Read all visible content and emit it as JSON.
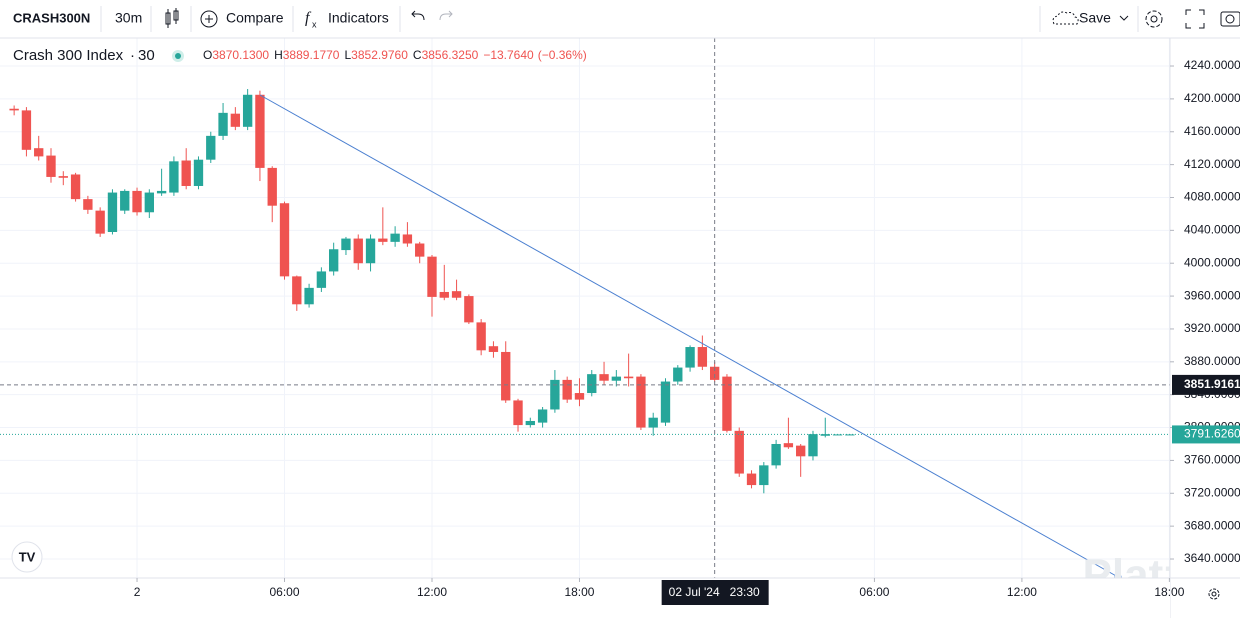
{
  "toolbar": {
    "symbol": "CRASH300N",
    "interval": "30m",
    "compare": "Compare",
    "indicators": "Indicators",
    "save": "Save"
  },
  "legend": {
    "name": "Crash 300 Index",
    "interval": "30",
    "items": [
      {
        "key": "O",
        "value": "3870.1300"
      },
      {
        "key": "H",
        "value": "3889.1770"
      },
      {
        "key": "L",
        "value": "3852.9760"
      },
      {
        "key": "C",
        "value": "3856.3250"
      }
    ],
    "change": "−13.7640",
    "change_pct": "(−0.36%)"
  },
  "chart_data": {
    "type": "candlestick",
    "x": [
      -10,
      -9,
      -8,
      -7,
      -6,
      -5,
      -4,
      -3,
      -2,
      -1,
      0,
      1,
      2,
      3,
      4,
      5,
      6,
      7,
      8,
      9,
      10,
      11,
      12,
      13,
      14,
      15,
      16,
      17,
      18,
      19,
      20,
      21,
      22,
      23,
      24,
      25,
      26,
      27,
      28,
      29,
      30,
      31,
      32,
      33,
      34,
      35,
      36,
      37,
      38,
      39,
      40,
      41,
      42,
      43,
      44,
      45,
      46,
      47,
      48,
      49,
      50,
      51,
      52,
      53,
      54,
      55,
      56,
      57,
      58
    ],
    "open": [
      4188,
      4186,
      4140,
      4131,
      4106,
      4108,
      4078,
      4064,
      4038,
      4064,
      4088,
      4062,
      4085,
      4086,
      4125,
      4094,
      4126,
      4155,
      4182,
      4166,
      4205,
      4116,
      4073,
      3984,
      3950,
      3970,
      3990,
      4016,
      4030,
      4000,
      4030,
      4026,
      4035,
      4024,
      4008,
      3965,
      3966,
      3960,
      3928,
      3899,
      3892,
      3833,
      3803,
      3806,
      3822,
      3858,
      3842,
      3842,
      3865,
      3857,
      3862,
      3862,
      3800,
      3806,
      3856,
      3873,
      3898,
      3874,
      3862,
      3796,
      3744,
      3730,
      3754,
      3781,
      3778,
      3765,
      3790,
      3791.6,
      3791.6
    ],
    "high": [
      4192,
      4190,
      4155,
      4140,
      4112,
      4110,
      4082,
      4068,
      4090,
      4090,
      4092,
      4090,
      4115,
      4130,
      4140,
      4130,
      4160,
      4195,
      4190,
      4212,
      4210,
      4118,
      4075,
      3985,
      3975,
      3995,
      4025,
      4032,
      4035,
      4035,
      4068,
      4045,
      4050,
      4026,
      4010,
      3998,
      3980,
      3962,
      3932,
      3905,
      3905,
      3835,
      3812,
      3825,
      3870,
      3862,
      3860,
      3870,
      3880,
      3870,
      3890,
      3865,
      3818,
      3860,
      3876,
      3900,
      3912,
      3880,
      3865,
      3800,
      3748,
      3758,
      3785,
      3812,
      3780,
      3796,
      3812,
      3792,
      3792
    ],
    "low": [
      4180,
      4130,
      4125,
      4098,
      4095,
      4075,
      4060,
      4032,
      4035,
      4060,
      4058,
      4055,
      4082,
      4082,
      4090,
      4090,
      4122,
      4150,
      4162,
      4162,
      4100,
      4050,
      3980,
      3942,
      3946,
      3965,
      3985,
      4010,
      3992,
      3990,
      4022,
      4020,
      4020,
      4000,
      3935,
      3955,
      3955,
      3926,
      3888,
      3885,
      3830,
      3795,
      3800,
      3800,
      3818,
      3830,
      3826,
      3838,
      3852,
      3850,
      3850,
      3797,
      3790,
      3802,
      3852,
      3868,
      3870,
      3855,
      3794,
      3740,
      3726,
      3720,
      3750,
      3774,
      3740,
      3760,
      3788,
      3791,
      3791
    ],
    "close": [
      4186,
      4138,
      4130,
      4105,
      4104,
      4078,
      4065,
      4036,
      4086,
      4088,
      4062,
      4086,
      4088,
      4124,
      4094,
      4126,
      4155,
      4183,
      4166,
      4205,
      4116,
      4070,
      3984,
      3950,
      3970,
      3990,
      4017,
      4030,
      4000,
      4030,
      4026,
      4036,
      4024,
      4008,
      3959,
      3958,
      3958,
      3928,
      3894,
      3892,
      3833,
      3803,
      3808,
      3822,
      3858,
      3834,
      3834,
      3865,
      3857,
      3862,
      3860,
      3800,
      3812,
      3856,
      3873,
      3898,
      3874,
      3858,
      3796,
      3744,
      3730,
      3754,
      3780,
      3776,
      3765,
      3792,
      3792,
      3791.626,
      3791.626
    ],
    "up_color": "#26a69a",
    "down_color": "#ef5350",
    "xlim": [
      -11.15,
      84.05
    ],
    "ylim": [
      3616.9,
      4274.1
    ],
    "xticks": [
      {
        "value": 0,
        "label": "2"
      },
      {
        "value": 12,
        "label": "06:00"
      },
      {
        "value": 24,
        "label": "12:00"
      },
      {
        "value": 36,
        "label": "18:00"
      },
      {
        "value": 60,
        "label": "06:00"
      },
      {
        "value": 72,
        "label": "12:00"
      },
      {
        "value": 84,
        "label": "18:00"
      }
    ],
    "yticks": [
      {
        "value": 4240,
        "label": "4240.0000"
      },
      {
        "value": 4200,
        "label": "4200.0000"
      },
      {
        "value": 4160,
        "label": "4160.0000"
      },
      {
        "value": 4120,
        "label": "4120.0000"
      },
      {
        "value": 4080,
        "label": "4080.0000"
      },
      {
        "value": 4040,
        "label": "4040.0000"
      },
      {
        "value": 4000,
        "label": "4000.0000"
      },
      {
        "value": 3960,
        "label": "3960.0000"
      },
      {
        "value": 3920,
        "label": "3920.0000"
      },
      {
        "value": 3880,
        "label": "3880.0000"
      },
      {
        "value": 3840,
        "label": "3840.0000"
      },
      {
        "value": 3800,
        "label": "3800.0000"
      },
      {
        "value": 3760,
        "label": "3760.0000"
      },
      {
        "value": 3720,
        "label": "3720.0000"
      },
      {
        "value": 3680,
        "label": "3680.0000"
      },
      {
        "value": 3640,
        "label": "3640.0000"
      }
    ],
    "grid": true,
    "crosshair": {
      "x": 47,
      "date_label": "02 Jul '24",
      "time_label": "23:30",
      "price": {
        "value": 3851.9161,
        "label": "3851.9161"
      }
    },
    "last_price": {
      "value": 3791.626,
      "label": "3791.6260"
    }
  },
  "watermark": "Platzi"
}
